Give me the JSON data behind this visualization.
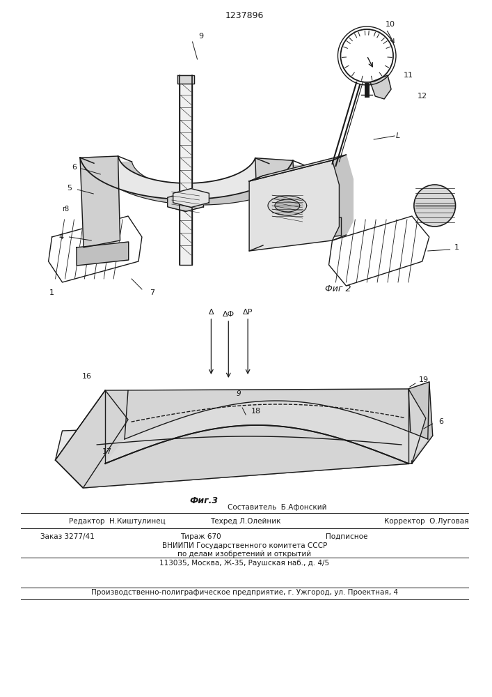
{
  "patent_number": "1237896",
  "fig2_label": "Фиг 2",
  "fig3_label": "Фиг.3",
  "sestavitel": "Составитель  Б.Афонский",
  "footer_editor": "Редактор  Н.Киштулинец",
  "footer_techred": "Техред Л.Олейник",
  "footer_corrector": "Корректор  О.Луговая",
  "footer_order": "Заказ 3277/41",
  "footer_tirazh": "Тираж 670",
  "footer_podpisnoe": "Подписное",
  "footer_vniiipi": "ВНИИПИ Государственного комитета СССР",
  "footer_po_delam": "по делам изобретений и открытий",
  "footer_address": "113035, Москва, Ж-35, Раушская наб., д. 4/5",
  "footer_production": "Производственно-полиграфическое предприятие, г. Ужгород, ул. Проектная, 4",
  "background_color": "#ffffff",
  "line_color": "#1a1a1a"
}
